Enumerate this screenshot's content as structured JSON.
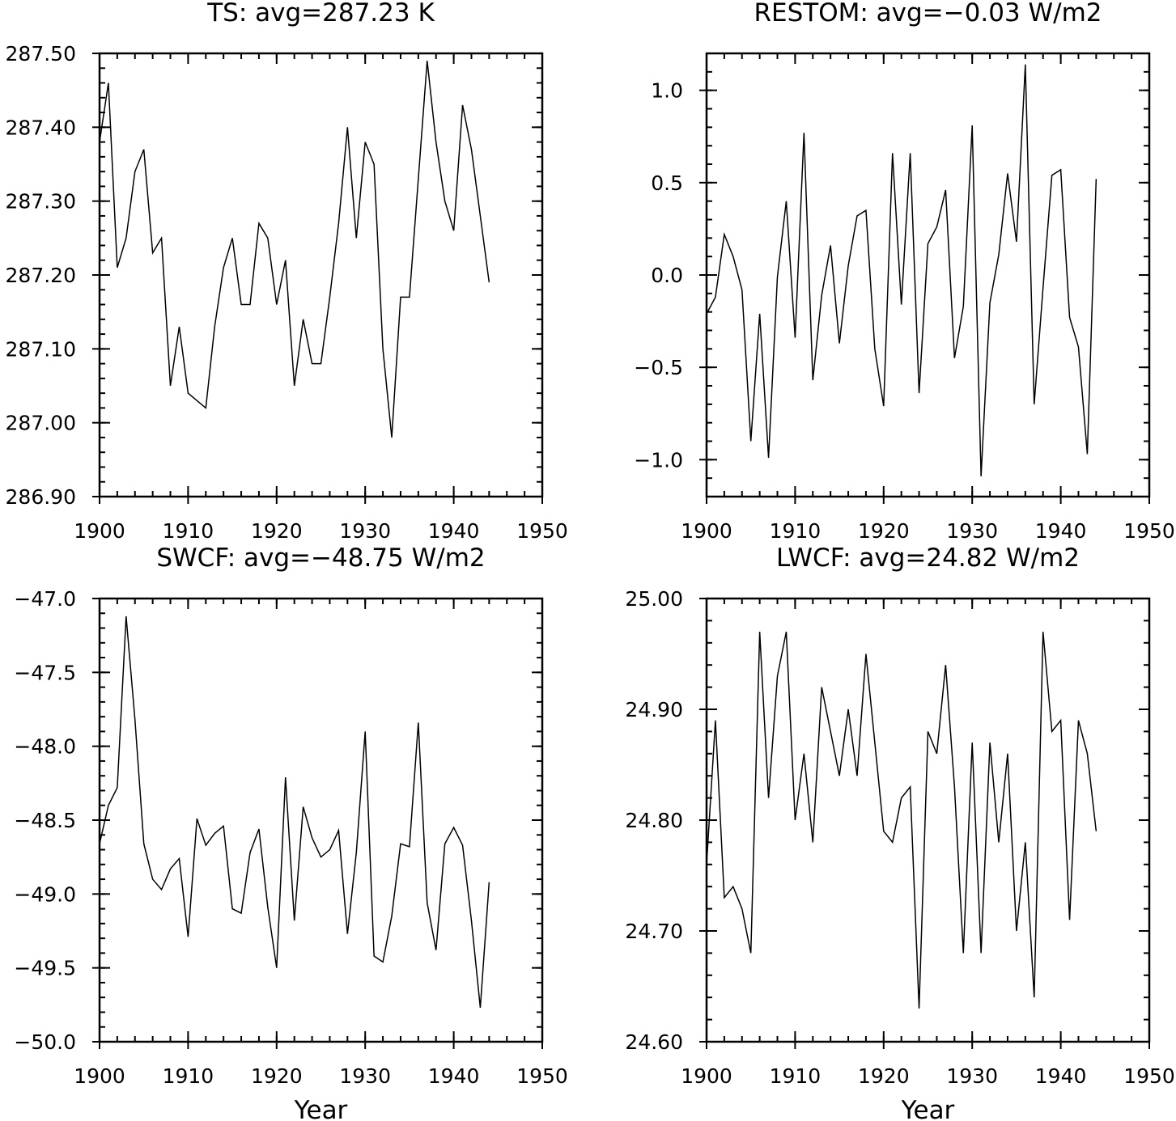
{
  "chart_data": [
    {
      "type": "line",
      "title": "TS: avg=287.23 K",
      "xlabel": "",
      "ylabel": "",
      "xlim": [
        1900,
        1950
      ],
      "ylim": [
        286.9,
        287.5
      ],
      "x_ticks": [
        1900,
        1910,
        1920,
        1930,
        1940,
        1950
      ],
      "x_tick_labels": [
        "1900",
        "1910",
        "1920",
        "1930",
        "1940",
        "1950"
      ],
      "y_ticks": [
        286.9,
        287.0,
        287.1,
        287.2,
        287.3,
        287.4,
        287.5
      ],
      "y_tick_labels": [
        "286.90",
        "287.00",
        "287.10",
        "287.20",
        "287.30",
        "287.40",
        "287.50"
      ],
      "x_minor_step": 2,
      "y_minor_step": 0.02,
      "grid": false,
      "series": [
        {
          "x": [
            1900,
            1901,
            1902,
            1903,
            1904,
            1905,
            1906,
            1907,
            1908,
            1909,
            1910,
            1911,
            1912,
            1913,
            1914,
            1915,
            1916,
            1917,
            1918,
            1919,
            1920,
            1921,
            1922,
            1923,
            1924,
            1925,
            1926,
            1927,
            1928,
            1929,
            1930,
            1931,
            1932,
            1933,
            1934,
            1935,
            1936,
            1937,
            1938,
            1939,
            1940,
            1941,
            1942,
            1943,
            1944
          ],
          "values": [
            287.38,
            287.46,
            287.21,
            287.25,
            287.34,
            287.37,
            287.23,
            287.25,
            287.05,
            287.13,
            287.04,
            287.03,
            287.02,
            287.13,
            287.21,
            287.25,
            287.16,
            287.16,
            287.27,
            287.25,
            287.16,
            287.22,
            287.05,
            287.14,
            287.08,
            287.08,
            287.17,
            287.27,
            287.4,
            287.25,
            287.38,
            287.35,
            287.1,
            286.98,
            287.17,
            287.17,
            287.33,
            287.49,
            287.38,
            287.3,
            287.26,
            287.43,
            287.37,
            287.28,
            287.19
          ]
        }
      ]
    },
    {
      "type": "line",
      "title": "RESTOM: avg=−0.03 W/m2",
      "xlabel": "",
      "ylabel": "",
      "xlim": [
        1900,
        1950
      ],
      "ylim": [
        -1.2,
        1.2
      ],
      "x_ticks": [
        1900,
        1910,
        1920,
        1930,
        1940,
        1950
      ],
      "x_tick_labels": [
        "1900",
        "1910",
        "1920",
        "1930",
        "1940",
        "1950"
      ],
      "y_ticks": [
        -1.0,
        -0.5,
        0.0,
        0.5,
        1.0
      ],
      "y_tick_labels": [
        "−1.0",
        "−0.5",
        "0.0",
        "0.5",
        "1.0"
      ],
      "x_minor_step": 2,
      "y_minor_step": 0.1,
      "grid": false,
      "series": [
        {
          "x": [
            1900,
            1901,
            1902,
            1903,
            1904,
            1905,
            1906,
            1907,
            1908,
            1909,
            1910,
            1911,
            1912,
            1913,
            1914,
            1915,
            1916,
            1917,
            1918,
            1919,
            1920,
            1921,
            1922,
            1923,
            1924,
            1925,
            1926,
            1927,
            1928,
            1929,
            1930,
            1931,
            1932,
            1933,
            1934,
            1935,
            1936,
            1937,
            1938,
            1939,
            1940,
            1941,
            1942,
            1943,
            1944
          ],
          "values": [
            -0.21,
            -0.12,
            0.22,
            0.1,
            -0.08,
            -0.9,
            -0.21,
            -0.99,
            -0.01,
            0.4,
            -0.34,
            0.77,
            -0.57,
            -0.11,
            0.16,
            -0.37,
            0.05,
            0.32,
            0.35,
            -0.4,
            -0.71,
            0.66,
            -0.16,
            0.66,
            -0.64,
            0.17,
            0.26,
            0.46,
            -0.45,
            -0.17,
            0.81,
            -1.09,
            -0.15,
            0.11,
            0.55,
            0.18,
            1.14,
            -0.7,
            -0.07,
            0.54,
            0.57,
            -0.23,
            -0.39,
            -0.97,
            0.52
          ]
        }
      ]
    },
    {
      "type": "line",
      "title": "SWCF: avg=−48.75 W/m2",
      "xlabel": "Year",
      "ylabel": "",
      "xlim": [
        1900,
        1950
      ],
      "ylim": [
        -50.0,
        -47.0
      ],
      "x_ticks": [
        1900,
        1910,
        1920,
        1930,
        1940,
        1950
      ],
      "x_tick_labels": [
        "1900",
        "1910",
        "1920",
        "1930",
        "1940",
        "1950"
      ],
      "y_ticks": [
        -50.0,
        -49.5,
        -49.0,
        -48.5,
        -48.0,
        -47.5,
        -47.0
      ],
      "y_tick_labels": [
        "−50.0",
        "−49.5",
        "−49.0",
        "−48.5",
        "−48.0",
        "−47.5",
        "−47.0"
      ],
      "x_minor_step": 2,
      "y_minor_step": 0.1,
      "grid": false,
      "series": [
        {
          "x": [
            1900,
            1901,
            1902,
            1903,
            1904,
            1905,
            1906,
            1907,
            1908,
            1909,
            1910,
            1911,
            1912,
            1913,
            1914,
            1915,
            1916,
            1917,
            1918,
            1919,
            1920,
            1921,
            1922,
            1923,
            1924,
            1925,
            1926,
            1927,
            1928,
            1929,
            1930,
            1931,
            1932,
            1933,
            1934,
            1935,
            1936,
            1937,
            1938,
            1939,
            1940,
            1941,
            1942,
            1943,
            1944
          ],
          "values": [
            -48.66,
            -48.4,
            -48.28,
            -47.12,
            -47.82,
            -48.66,
            -48.9,
            -48.97,
            -48.83,
            -48.76,
            -49.29,
            -48.49,
            -48.67,
            -48.59,
            -48.54,
            -49.1,
            -49.13,
            -48.72,
            -48.56,
            -49.09,
            -49.5,
            -48.21,
            -49.18,
            -48.41,
            -48.62,
            -48.75,
            -48.7,
            -48.57,
            -49.27,
            -48.72,
            -47.9,
            -49.42,
            -49.46,
            -49.15,
            -48.66,
            -48.68,
            -47.84,
            -49.06,
            -49.38,
            -48.66,
            -48.55,
            -48.67,
            -49.18,
            -49.77,
            -48.92
          ]
        }
      ]
    },
    {
      "type": "line",
      "title": "LWCF: avg=24.82 W/m2",
      "xlabel": "Year",
      "ylabel": "",
      "xlim": [
        1900,
        1950
      ],
      "ylim": [
        24.6,
        25.0
      ],
      "x_ticks": [
        1900,
        1910,
        1920,
        1930,
        1940,
        1950
      ],
      "x_tick_labels": [
        "1900",
        "1910",
        "1920",
        "1930",
        "1940",
        "1950"
      ],
      "y_ticks": [
        24.6,
        24.7,
        24.8,
        24.9,
        25.0
      ],
      "y_tick_labels": [
        "24.60",
        "24.70",
        "24.80",
        "24.90",
        "25.00"
      ],
      "x_minor_step": 2,
      "y_minor_step": 0.02,
      "grid": false,
      "series": [
        {
          "x": [
            1900,
            1901,
            1902,
            1903,
            1904,
            1905,
            1906,
            1907,
            1908,
            1909,
            1910,
            1911,
            1912,
            1913,
            1914,
            1915,
            1916,
            1917,
            1918,
            1919,
            1920,
            1921,
            1922,
            1923,
            1924,
            1925,
            1926,
            1927,
            1928,
            1929,
            1930,
            1931,
            1932,
            1933,
            1934,
            1935,
            1936,
            1937,
            1938,
            1939,
            1940,
            1941,
            1942,
            1943,
            1944
          ],
          "values": [
            24.76,
            24.89,
            24.73,
            24.74,
            24.72,
            24.68,
            24.97,
            24.82,
            24.93,
            24.97,
            24.8,
            24.86,
            24.78,
            24.92,
            24.88,
            24.84,
            24.9,
            24.84,
            24.95,
            24.87,
            24.79,
            24.78,
            24.82,
            24.83,
            24.63,
            24.88,
            24.86,
            24.94,
            24.83,
            24.68,
            24.87,
            24.68,
            24.87,
            24.78,
            24.86,
            24.7,
            24.78,
            24.64,
            24.97,
            24.88,
            24.89,
            24.71,
            24.89,
            24.86,
            24.79
          ]
        }
      ]
    }
  ]
}
